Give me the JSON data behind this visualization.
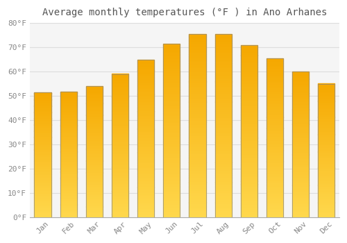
{
  "title": "Average monthly temperatures (°F ) in Ano Arhanes",
  "months": [
    "Jan",
    "Feb",
    "Mar",
    "Apr",
    "May",
    "Jun",
    "Jul",
    "Aug",
    "Sep",
    "Oct",
    "Nov",
    "Dec"
  ],
  "values": [
    51.5,
    51.8,
    54.0,
    59.0,
    65.0,
    71.5,
    75.5,
    75.5,
    71.0,
    65.5,
    60.0,
    55.0
  ],
  "bar_color_top": "#F5A800",
  "bar_color_bottom": "#FFD84D",
  "bar_edge_color": "#888888",
  "ylim": [
    0,
    80
  ],
  "yticks": [
    0,
    10,
    20,
    30,
    40,
    50,
    60,
    70,
    80
  ],
  "ytick_labels": [
    "0°F",
    "10°F",
    "20°F",
    "30°F",
    "40°F",
    "50°F",
    "60°F",
    "70°F",
    "80°F"
  ],
  "bg_color": "#FFFFFF",
  "plot_bg_color": "#F5F5F5",
  "grid_color": "#DDDDDD",
  "title_fontsize": 10,
  "tick_fontsize": 8,
  "bar_width": 0.65,
  "title_color": "#555555",
  "tick_color": "#888888"
}
